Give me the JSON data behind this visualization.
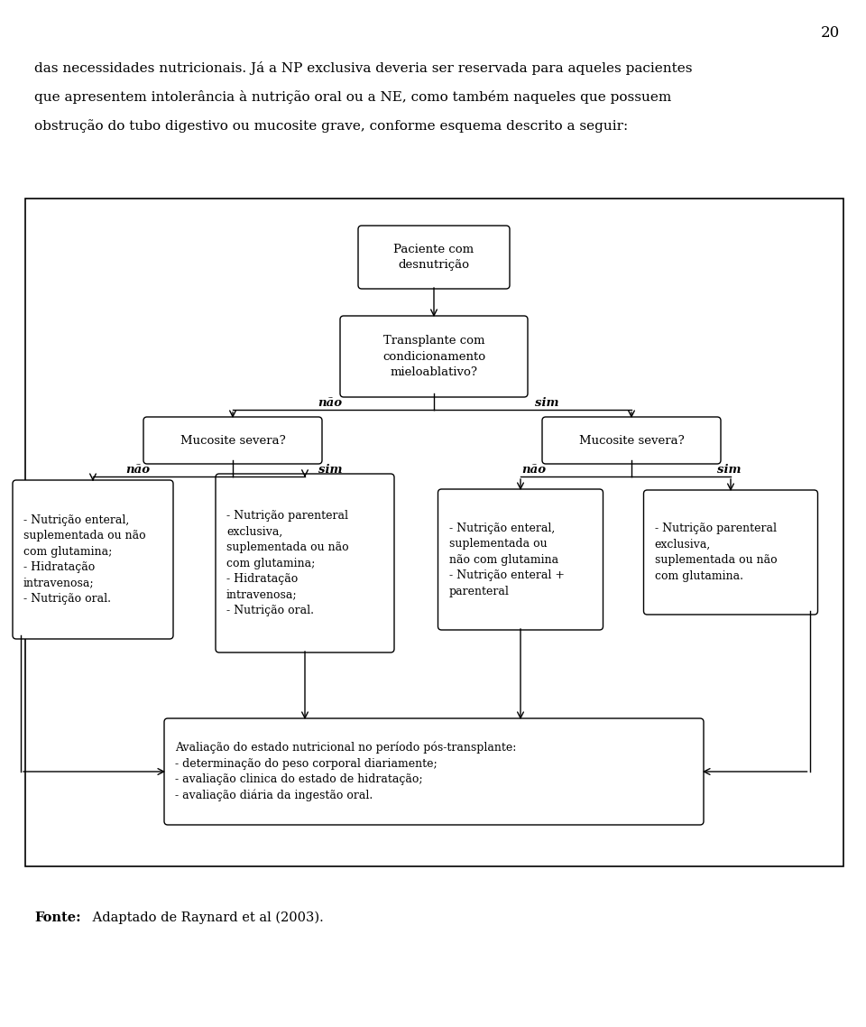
{
  "page_number": "20",
  "header_lines": [
    "das necessidades nutricionais. Já a NP exclusiva deveria ser reservada para aqueles pacientes",
    "que apresentem intolerância à nutrição oral ou a NE, como também naqueles que possuem",
    "obstrução do tubo digestivo ou mucosite grave, conforme esquema descrito a seguir:"
  ],
  "footer_bold": "Fonte:",
  "footer_rest": " Adaptado de Raynard et al (2003).",
  "box_node_pac": "Paciente com\ndesnutrição",
  "box_node_tra": "Transplante com\ncondicionamento\nmieloablativo?",
  "box_node_ml": "Mucosite severa?",
  "box_node_mr": "Mucosite severa?",
  "box_ll": "- Nutrição enteral,\nsuplementada ou não\ncom glutamina;\n- Hidratação\nintravenosa;\n- Nutrição oral.",
  "box_lr": "- Nutrição parenteral\nexclusiva,\nsuplementada ou não\ncom glutamina;\n- Hidratação\nintravenosa;\n- Nutrição oral.",
  "box_rl": "- Nutrição enteral,\nsuplementada ou\nnão com glutamina\n- Nutrição enteral +\nparenteral",
  "box_rr": "- Nutrição parenteral\nexclusiva,\nsuplementada ou não\ncom glutamina.",
  "box_ava": "Avaliação do estado nutricional no período pós-transplante:\n- determinação do peso corporal diariamente;\n- avaliação clinica do estado de hidratação;\n- avaliação diária da ingestão oral.",
  "bg": "#ffffff",
  "fg": "#000000"
}
